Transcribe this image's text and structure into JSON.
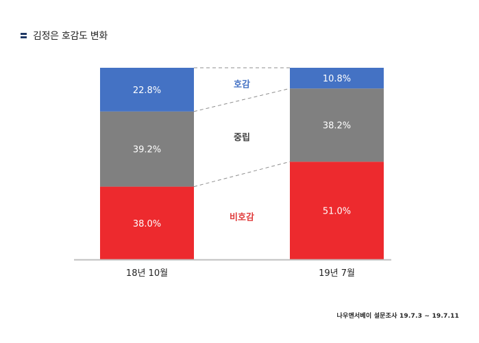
{
  "title": "김정은 호감도 변화",
  "source": "나우앤서베이 설문조사  19.7.3 ~ 19.7.11",
  "colors": {
    "favorable": "#4472c4",
    "neutral": "#808080",
    "unfavorable": "#ed2a2e",
    "axis": "#bfbfbf",
    "title_icon": "#1f3864"
  },
  "chart_data": {
    "type": "bar",
    "stacked": true,
    "categories": [
      "18년 10월",
      "19년 7월"
    ],
    "series": [
      {
        "name": "비호감",
        "values": [
          38.0,
          51.0
        ],
        "labels": [
          "38.0%",
          "51.0%"
        ],
        "color": "#ed2a2e",
        "label_color": "#e03a3a"
      },
      {
        "name": "중립",
        "values": [
          39.2,
          38.2
        ],
        "labels": [
          "39.2%",
          "38.2%"
        ],
        "color": "#808080",
        "label_color": "#404040"
      },
      {
        "name": "호감",
        "values": [
          22.8,
          10.8
        ],
        "labels": [
          "22.8%",
          "10.8%"
        ],
        "color": "#4472c4",
        "label_color": "#4472c4"
      }
    ],
    "ylim": [
      0,
      100
    ],
    "gridlines": false,
    "connector_lines": "dashed"
  }
}
